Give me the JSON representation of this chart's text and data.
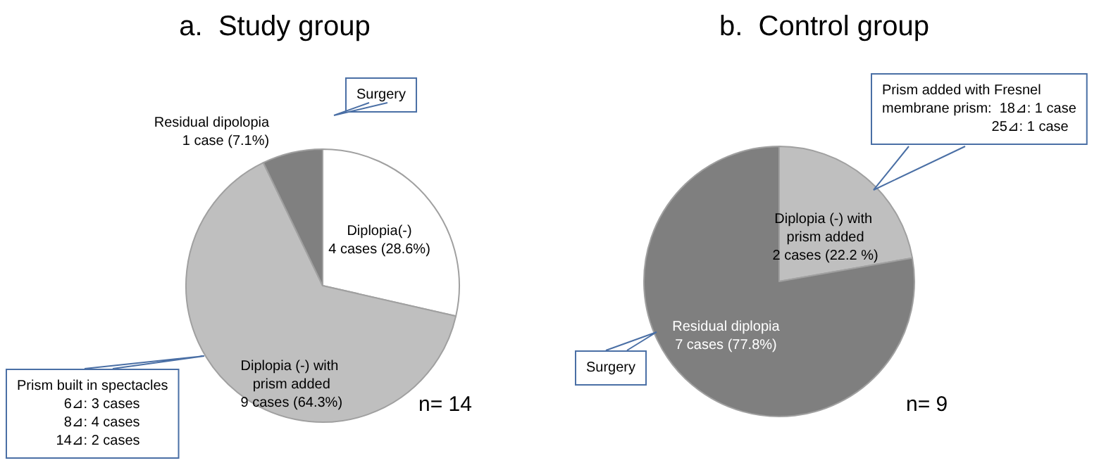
{
  "chart_data": [
    {
      "type": "pie",
      "title": "a.  Study group",
      "categories": [
        "Diplopia(-)",
        "Diplopia (-) with prism added",
        "Residual dipolopia"
      ],
      "values": [
        4,
        9,
        1
      ],
      "value_labels": [
        "4 cases (28.6%)",
        "9 cases (64.3%)",
        "1 case (7.1%)"
      ],
      "colors": [
        "#ffffff",
        "#bfbfbf",
        "#808080"
      ],
      "annotations": [
        "Surgery",
        "Prism built in spectacles\n            6⊿: 3 cases\n            8⊿: 4 cases\n          14⊿: 2 cases",
        "n= 14"
      ]
    },
    {
      "type": "pie",
      "title": "b.  Control group",
      "categories": [
        "Diplopia (-) with prism added",
        "Residual diplopia"
      ],
      "values": [
        2,
        7
      ],
      "value_labels": [
        "2 cases (22.2 %)",
        "7 cases (77.8%)"
      ],
      "colors": [
        "#bfbfbf",
        "#7f7f7f"
      ],
      "annotations": [
        "Prism added with Fresnel\nmembrane prism:  18⊿: 1 case\n                            25⊿: 1 case",
        "Surgery",
        "n= 9"
      ]
    }
  ]
}
